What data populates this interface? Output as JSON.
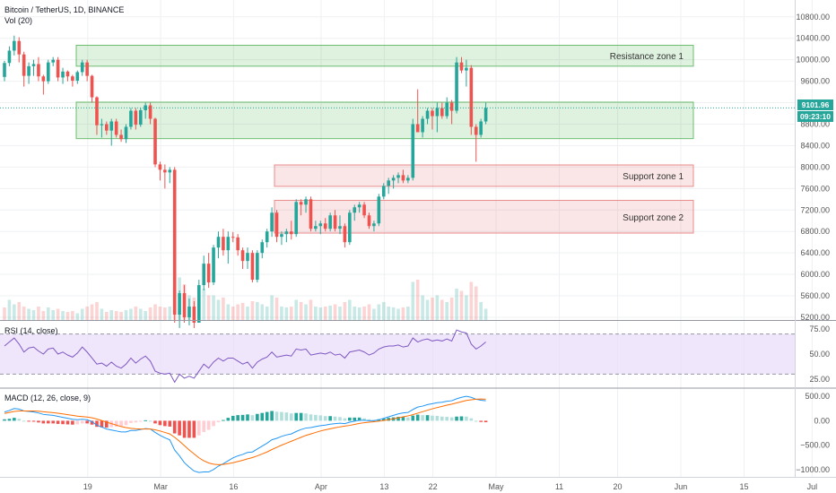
{
  "header": {
    "symbol": "Bitcoin / TetherUS, 1D, BINANCE",
    "volume": "Vol (20)",
    "rsi": "RSI (14, close)",
    "macd": "MACD (12, 26, close, 9)"
  },
  "price_tag": {
    "price": "9101.96",
    "countdown": "09:23:10"
  },
  "colors": {
    "up": "#26a69a",
    "down": "#ef5350",
    "zone_green": "#4caf50",
    "zone_red": "#e57373",
    "rsi_line": "#7e57c2",
    "rsi_band": "#e9dcfa",
    "macd_line": "#2196f3",
    "signal_line": "#ff6d00",
    "hist_up_strong": "#26a69a",
    "hist_up_weak": "#b2dfdb",
    "hist_down_strong": "#ef5350",
    "hist_down_weak": "#ffcdd2"
  },
  "chart_data": [
    {
      "type": "candlestick",
      "title": "Bitcoin / TetherUS, 1D, BINANCE",
      "y_ticks": [
        "10800.00",
        "10400.00",
        "10000.00",
        "9600.00",
        "9200.00",
        "8800.00",
        "8400.00",
        "8000.00",
        "7600.00",
        "7200.00",
        "6800.00",
        "6400.00",
        "6000.00",
        "5600.00",
        "5200.00"
      ],
      "ylim": [
        5150,
        10980
      ],
      "x_ticks": [
        "19",
        "Mar",
        "16",
        "Apr",
        "13",
        "22",
        "May",
        "11",
        "20",
        "Jun",
        "15",
        "Jul"
      ],
      "zones": [
        {
          "name": "Resistance zone 1",
          "low": 9880,
          "high": 10270,
          "kind": "green"
        },
        {
          "name": "",
          "low": 8530,
          "high": 9210,
          "kind": "green"
        },
        {
          "name": "Support zone 1",
          "low": 7640,
          "high": 8040,
          "kind": "red"
        },
        {
          "name": "Support zone 2",
          "low": 6770,
          "high": 7380,
          "kind": "red"
        }
      ],
      "candles": [
        [
          9680,
          9980,
          9600,
          9940
        ],
        [
          9940,
          10250,
          9880,
          10170
        ],
        [
          10170,
          10450,
          10080,
          10350
        ],
        [
          10350,
          10420,
          9950,
          10100
        ],
        [
          10100,
          10150,
          9500,
          9700
        ],
        [
          9700,
          9950,
          9550,
          9880
        ],
        [
          9880,
          10000,
          9700,
          9920
        ],
        [
          9920,
          10050,
          9600,
          9690
        ],
        [
          9690,
          9720,
          9350,
          9600
        ],
        [
          9600,
          10000,
          9550,
          9950
        ],
        [
          9950,
          10050,
          9880,
          10000
        ],
        [
          10000,
          10050,
          9600,
          9670
        ],
        [
          9670,
          9850,
          9550,
          9780
        ],
        [
          9780,
          9800,
          9600,
          9690
        ],
        [
          9690,
          9720,
          9500,
          9610
        ],
        [
          9610,
          9800,
          9550,
          9770
        ],
        [
          9770,
          10000,
          9700,
          9950
        ],
        [
          9950,
          10000,
          9600,
          9700
        ],
        [
          9700,
          9720,
          9200,
          9300
        ],
        [
          9300,
          9320,
          8600,
          8780
        ],
        [
          8780,
          8900,
          8550,
          8800
        ],
        [
          8800,
          8850,
          8600,
          8680
        ],
        [
          8680,
          8900,
          8400,
          8850
        ],
        [
          8850,
          8900,
          8550,
          8600
        ],
        [
          8600,
          8700,
          8470,
          8520
        ],
        [
          8520,
          8800,
          8450,
          8750
        ],
        [
          8750,
          9100,
          8700,
          9050
        ],
        [
          9050,
          9100,
          8700,
          8790
        ],
        [
          8790,
          9100,
          8750,
          9060
        ],
        [
          9060,
          9200,
          8900,
          9150
        ],
        [
          9150,
          9200,
          8800,
          8900
        ],
        [
          8900,
          8920,
          8000,
          8050
        ],
        [
          8050,
          8100,
          7750,
          7950
        ],
        [
          7950,
          8050,
          7600,
          7900
        ],
        [
          7900,
          8000,
          7700,
          7950
        ],
        [
          7950,
          8000,
          5100,
          5250
        ],
        [
          5250,
          5700,
          5000,
          5650
        ],
        [
          5650,
          5800,
          5100,
          5200
        ],
        [
          5200,
          5550,
          5050,
          5400
        ],
        [
          5400,
          5500,
          5000,
          5100
        ],
        [
          5100,
          5900,
          5100,
          5800
        ],
        [
          5800,
          6350,
          5700,
          6200
        ],
        [
          6200,
          6400,
          5750,
          5850
        ],
        [
          5850,
          6550,
          5800,
          6500
        ],
        [
          6500,
          6800,
          6300,
          6700
        ],
        [
          6700,
          6850,
          6350,
          6450
        ],
        [
          6450,
          6800,
          6200,
          6700
        ],
        [
          6700,
          6790,
          6600,
          6690
        ],
        [
          6690,
          6750,
          6350,
          6450
        ],
        [
          6450,
          6500,
          6100,
          6250
        ],
        [
          6250,
          6500,
          6100,
          6400
        ],
        [
          6400,
          6450,
          5850,
          5900
        ],
        [
          5900,
          6450,
          5850,
          6400
        ],
        [
          6400,
          6650,
          6300,
          6600
        ],
        [
          6600,
          6850,
          6500,
          6800
        ],
        [
          6800,
          7250,
          6700,
          7150
        ],
        [
          7150,
          7200,
          6600,
          6700
        ],
        [
          6700,
          6800,
          6550,
          6750
        ],
        [
          6750,
          6850,
          6600,
          6800
        ],
        [
          6800,
          7000,
          6650,
          6750
        ],
        [
          6750,
          7400,
          6700,
          7350
        ],
        [
          7350,
          7400,
          7100,
          7300
        ],
        [
          7300,
          7450,
          7150,
          7400
        ],
        [
          7400,
          7450,
          6800,
          6850
        ],
        [
          6850,
          7000,
          6800,
          6900
        ],
        [
          6900,
          7000,
          6750,
          6950
        ],
        [
          6950,
          7050,
          6800,
          6850
        ],
        [
          6850,
          7150,
          6800,
          7100
        ],
        [
          7100,
          7200,
          6800,
          6850
        ],
        [
          6850,
          7100,
          6750,
          6900
        ],
        [
          6900,
          6950,
          6500,
          6600
        ],
        [
          6600,
          7200,
          6550,
          7150
        ],
        [
          7150,
          7300,
          7000,
          7250
        ],
        [
          7250,
          7350,
          7150,
          7300
        ],
        [
          7300,
          7350,
          7050,
          7100
        ],
        [
          7100,
          7150,
          6850,
          6900
        ],
        [
          6900,
          7000,
          6800,
          6950
        ],
        [
          6950,
          7500,
          6900,
          7450
        ],
        [
          7450,
          7700,
          7400,
          7650
        ],
        [
          7650,
          7800,
          7500,
          7750
        ],
        [
          7750,
          7850,
          7600,
          7800
        ],
        [
          7800,
          7900,
          7700,
          7850
        ],
        [
          7850,
          7950,
          7700,
          7750
        ],
        [
          7750,
          7850,
          7700,
          7800
        ],
        [
          7800,
          8900,
          7750,
          8800
        ],
        [
          8800,
          9450,
          8700,
          8650
        ],
        [
          8650,
          8950,
          8550,
          8900
        ],
        [
          8900,
          9100,
          8800,
          9050
        ],
        [
          9050,
          9100,
          8700,
          8950
        ],
        [
          8950,
          9200,
          8650,
          9100
        ],
        [
          9100,
          9200,
          8900,
          8950
        ],
        [
          8950,
          9300,
          8900,
          9200
        ],
        [
          9200,
          9250,
          8800,
          9050
        ],
        [
          9050,
          10050,
          9000,
          9950
        ],
        [
          9950,
          10050,
          9750,
          9800
        ],
        [
          9800,
          10000,
          9500,
          9850
        ],
        [
          9850,
          9900,
          8600,
          8750
        ],
        [
          8750,
          8800,
          8100,
          8600
        ],
        [
          8600,
          8900,
          8550,
          8850
        ],
        [
          8850,
          9200,
          8800,
          9102
        ]
      ],
      "volume": [
        [
          0.28,
          "down"
        ],
        [
          0.45,
          "up"
        ],
        [
          0.35,
          "up"
        ],
        [
          0.4,
          "down"
        ],
        [
          0.3,
          "down"
        ],
        [
          0.25,
          "up"
        ],
        [
          0.22,
          "up"
        ],
        [
          0.3,
          "down"
        ],
        [
          0.2,
          "down"
        ],
        [
          0.28,
          "up"
        ],
        [
          0.22,
          "up"
        ],
        [
          0.25,
          "down"
        ],
        [
          0.2,
          "up"
        ],
        [
          0.18,
          "down"
        ],
        [
          0.2,
          "down"
        ],
        [
          0.15,
          "up"
        ],
        [
          0.25,
          "up"
        ],
        [
          0.3,
          "down"
        ],
        [
          0.35,
          "down"
        ],
        [
          0.4,
          "down"
        ],
        [
          0.25,
          "up"
        ],
        [
          0.18,
          "down"
        ],
        [
          0.22,
          "up"
        ],
        [
          0.2,
          "down"
        ],
        [
          0.18,
          "down"
        ],
        [
          0.22,
          "up"
        ],
        [
          0.25,
          "up"
        ],
        [
          0.3,
          "down"
        ],
        [
          0.25,
          "up"
        ],
        [
          0.2,
          "up"
        ],
        [
          0.28,
          "down"
        ],
        [
          0.35,
          "down"
        ],
        [
          0.3,
          "down"
        ],
        [
          0.28,
          "down"
        ],
        [
          0.3,
          "up"
        ],
        [
          0.75,
          "down"
        ],
        [
          0.95,
          "up"
        ],
        [
          0.8,
          "down"
        ],
        [
          0.55,
          "up"
        ],
        [
          0.5,
          "down"
        ],
        [
          0.6,
          "up"
        ],
        [
          0.7,
          "up"
        ],
        [
          0.55,
          "down"
        ],
        [
          0.55,
          "up"
        ],
        [
          0.45,
          "up"
        ],
        [
          0.5,
          "down"
        ],
        [
          0.35,
          "up"
        ],
        [
          0.3,
          "down"
        ],
        [
          0.35,
          "down"
        ],
        [
          0.38,
          "down"
        ],
        [
          0.3,
          "up"
        ],
        [
          0.42,
          "down"
        ],
        [
          0.4,
          "up"
        ],
        [
          0.35,
          "up"
        ],
        [
          0.3,
          "up"
        ],
        [
          0.55,
          "up"
        ],
        [
          0.5,
          "down"
        ],
        [
          0.3,
          "up"
        ],
        [
          0.28,
          "up"
        ],
        [
          0.3,
          "down"
        ],
        [
          0.45,
          "up"
        ],
        [
          0.4,
          "down"
        ],
        [
          0.35,
          "up"
        ],
        [
          0.45,
          "down"
        ],
        [
          0.3,
          "up"
        ],
        [
          0.28,
          "up"
        ],
        [
          0.3,
          "down"
        ],
        [
          0.32,
          "up"
        ],
        [
          0.35,
          "down"
        ],
        [
          0.3,
          "up"
        ],
        [
          0.4,
          "down"
        ],
        [
          0.45,
          "up"
        ],
        [
          0.3,
          "up"
        ],
        [
          0.28,
          "up"
        ],
        [
          0.3,
          "down"
        ],
        [
          0.35,
          "down"
        ],
        [
          0.25,
          "up"
        ],
        [
          0.35,
          "up"
        ],
        [
          0.4,
          "up"
        ],
        [
          0.3,
          "up"
        ],
        [
          0.28,
          "up"
        ],
        [
          0.25,
          "up"
        ],
        [
          0.28,
          "down"
        ],
        [
          0.3,
          "up"
        ],
        [
          0.85,
          "up"
        ],
        [
          0.9,
          "down"
        ],
        [
          0.55,
          "up"
        ],
        [
          0.45,
          "up"
        ],
        [
          0.5,
          "down"
        ],
        [
          0.55,
          "up"
        ],
        [
          0.45,
          "down"
        ],
        [
          0.4,
          "up"
        ],
        [
          0.5,
          "down"
        ],
        [
          0.7,
          "up"
        ],
        [
          0.65,
          "down"
        ],
        [
          0.55,
          "up"
        ],
        [
          0.85,
          "down"
        ],
        [
          0.75,
          "down"
        ],
        [
          0.4,
          "up"
        ],
        [
          0.25,
          "up"
        ]
      ]
    },
    {
      "type": "line",
      "title": "RSI (14, close)",
      "y_ticks": [
        "75.00",
        "50.00",
        "25.00"
      ],
      "band": [
        30,
        70
      ],
      "ylim": [
        17,
        83
      ],
      "values": [
        58,
        62,
        66,
        60,
        52,
        56,
        57,
        53,
        50,
        55,
        56,
        50,
        52,
        49,
        47,
        51,
        57,
        52,
        46,
        40,
        41,
        38,
        42,
        38,
        36,
        40,
        46,
        41,
        45,
        48,
        43,
        33,
        31,
        30,
        31,
        22,
        30,
        26,
        28,
        26,
        33,
        40,
        36,
        42,
        46,
        43,
        46,
        46,
        43,
        40,
        42,
        36,
        42,
        45,
        47,
        52,
        47,
        48,
        49,
        48,
        55,
        54,
        55,
        49,
        50,
        51,
        50,
        52,
        49,
        50,
        46,
        52,
        53,
        54,
        52,
        49,
        51,
        55,
        57,
        58,
        58,
        59,
        57,
        58,
        66,
        62,
        64,
        65,
        63,
        64,
        63,
        65,
        63,
        74,
        72,
        71,
        60,
        55,
        58,
        62
      ]
    },
    {
      "type": "line",
      "title": "MACD (12, 26, close, 9)",
      "y_ticks": [
        "500.00",
        "0.00",
        "−500.00",
        "−1000.00"
      ],
      "ylim": [
        -1150,
        650
      ],
      "macd": [
        180,
        210,
        250,
        240,
        200,
        190,
        180,
        160,
        130,
        120,
        110,
        90,
        70,
        50,
        30,
        20,
        30,
        20,
        -20,
        -90,
        -130,
        -170,
        -190,
        -210,
        -230,
        -230,
        -200,
        -200,
        -180,
        -160,
        -170,
        -240,
        -300,
        -350,
        -390,
        -600,
        -720,
        -860,
        -950,
        -1030,
        -1060,
        -1050,
        -1050,
        -1000,
        -930,
        -880,
        -820,
        -760,
        -720,
        -690,
        -650,
        -640,
        -580,
        -520,
        -460,
        -390,
        -360,
        -320,
        -290,
        -270,
        -220,
        -180,
        -150,
        -140,
        -120,
        -100,
        -90,
        -70,
        -60,
        -50,
        -60,
        -30,
        -10,
        10,
        10,
        0,
        0,
        20,
        50,
        80,
        110,
        140,
        160,
        170,
        230,
        280,
        300,
        330,
        350,
        370,
        380,
        400,
        410,
        450,
        480,
        500,
        480,
        440,
        420,
        410
      ],
      "signal": [
        150,
        170,
        190,
        200,
        200,
        200,
        200,
        195,
        185,
        175,
        165,
        155,
        140,
        125,
        110,
        95,
        85,
        75,
        60,
        35,
        5,
        -30,
        -60,
        -90,
        -120,
        -140,
        -155,
        -165,
        -170,
        -170,
        -170,
        -185,
        -210,
        -240,
        -270,
        -340,
        -420,
        -510,
        -600,
        -680,
        -760,
        -820,
        -865,
        -890,
        -900,
        -895,
        -880,
        -860,
        -835,
        -810,
        -780,
        -755,
        -720,
        -680,
        -640,
        -590,
        -545,
        -500,
        -460,
        -420,
        -380,
        -340,
        -300,
        -270,
        -240,
        -210,
        -185,
        -165,
        -145,
        -125,
        -110,
        -95,
        -75,
        -55,
        -40,
        -30,
        -20,
        -10,
        5,
        20,
        40,
        60,
        80,
        100,
        125,
        155,
        185,
        215,
        245,
        270,
        295,
        320,
        340,
        365,
        390,
        415,
        430,
        440,
        445,
        440
      ]
    }
  ]
}
